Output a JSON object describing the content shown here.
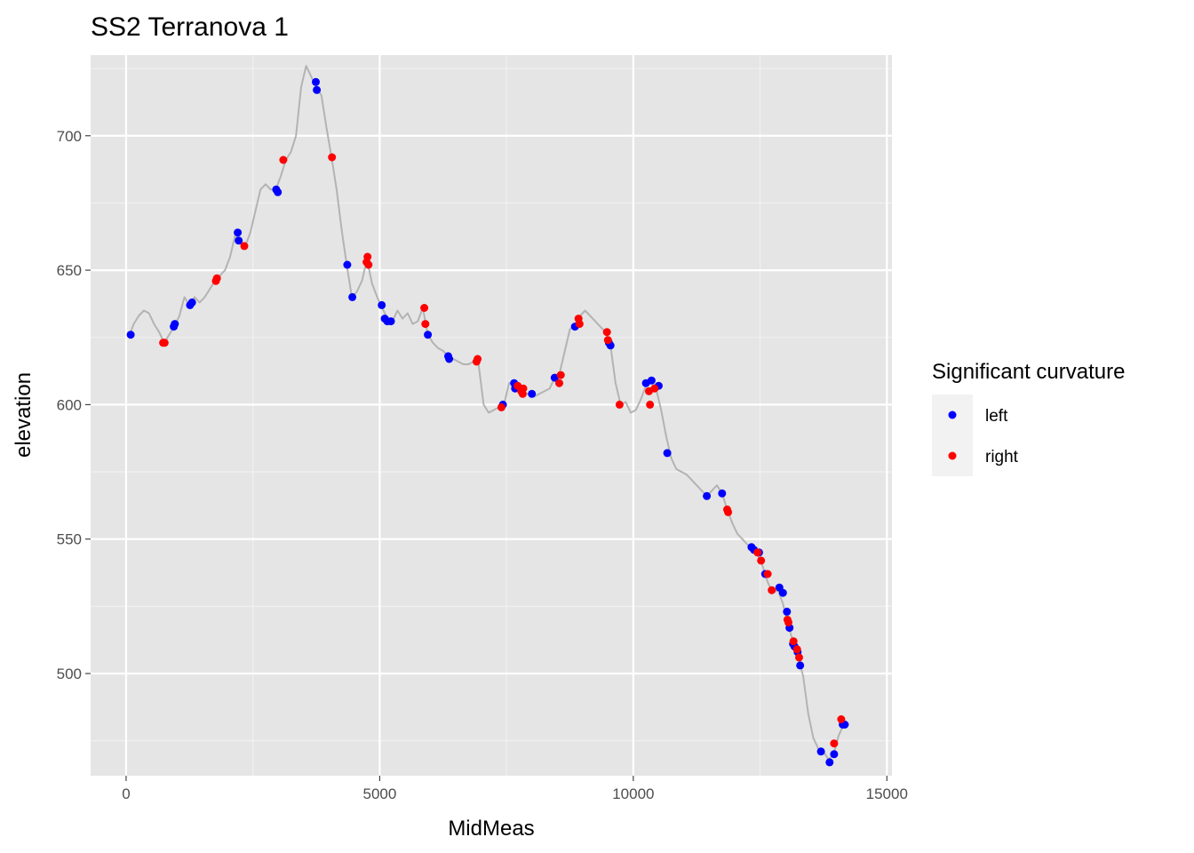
{
  "chart_data": {
    "type": "scatter",
    "title": "SS2 Terranova 1",
    "xlabel": "MidMeas",
    "ylabel": "elevation",
    "xlim": [
      -700,
      15100
    ],
    "ylim": [
      462,
      730
    ],
    "x_ticks": [
      0,
      5000,
      10000,
      15000
    ],
    "y_ticks": [
      500,
      550,
      600,
      650,
      700
    ],
    "grid": true,
    "background": "#e5e5e5",
    "legend": {
      "title": "Significant curvature",
      "placement": "right",
      "entries": [
        {
          "label": "left",
          "color": "#0000ff"
        },
        {
          "label": "right",
          "color": "#ff0000"
        }
      ]
    },
    "profile_line": {
      "color": "#b3b3b3",
      "points": [
        [
          50,
          625
        ],
        [
          150,
          630
        ],
        [
          250,
          633
        ],
        [
          350,
          635
        ],
        [
          450,
          634
        ],
        [
          550,
          630
        ],
        [
          650,
          627
        ],
        [
          750,
          623
        ],
        [
          850,
          626
        ],
        [
          950,
          629
        ],
        [
          1050,
          633
        ],
        [
          1150,
          640
        ],
        [
          1250,
          637
        ],
        [
          1350,
          640
        ],
        [
          1450,
          638
        ],
        [
          1550,
          640
        ],
        [
          1650,
          643
        ],
        [
          1750,
          646
        ],
        [
          1850,
          648
        ],
        [
          1950,
          650
        ],
        [
          2050,
          655
        ],
        [
          2150,
          663
        ],
        [
          2250,
          660
        ],
        [
          2350,
          659
        ],
        [
          2450,
          664
        ],
        [
          2550,
          672
        ],
        [
          2650,
          680
        ],
        [
          2750,
          682
        ],
        [
          2850,
          680
        ],
        [
          2950,
          680
        ],
        [
          3050,
          685
        ],
        [
          3150,
          691
        ],
        [
          3250,
          694
        ],
        [
          3350,
          700
        ],
        [
          3450,
          718
        ],
        [
          3550,
          726
        ],
        [
          3650,
          722
        ],
        [
          3750,
          718
        ],
        [
          3850,
          715
        ],
        [
          3950,
          703
        ],
        [
          4050,
          692
        ],
        [
          4150,
          680
        ],
        [
          4250,
          665
        ],
        [
          4350,
          652
        ],
        [
          4450,
          640
        ],
        [
          4550,
          642
        ],
        [
          4650,
          646
        ],
        [
          4750,
          654
        ],
        [
          4850,
          645
        ],
        [
          4950,
          640
        ],
        [
          5050,
          636
        ],
        [
          5150,
          632
        ],
        [
          5250,
          631
        ],
        [
          5350,
          635
        ],
        [
          5450,
          632
        ],
        [
          5550,
          634
        ],
        [
          5650,
          630
        ],
        [
          5750,
          631
        ],
        [
          5850,
          636
        ],
        [
          5950,
          626
        ],
        [
          6050,
          623
        ],
        [
          6150,
          621
        ],
        [
          6250,
          620
        ],
        [
          6350,
          618
        ],
        [
          6450,
          617
        ],
        [
          6550,
          616
        ],
        [
          6650,
          615
        ],
        [
          6750,
          615
        ],
        [
          6850,
          616
        ],
        [
          6950,
          615
        ],
        [
          7050,
          600
        ],
        [
          7150,
          597
        ],
        [
          7250,
          598
        ],
        [
          7350,
          599
        ],
        [
          7450,
          600
        ],
        [
          7550,
          608
        ],
        [
          7650,
          608
        ],
        [
          7750,
          605
        ],
        [
          7850,
          604
        ],
        [
          7950,
          604
        ],
        [
          8050,
          603
        ],
        [
          8150,
          604
        ],
        [
          8250,
          605
        ],
        [
          8350,
          606
        ],
        [
          8450,
          610
        ],
        [
          8550,
          612
        ],
        [
          8650,
          620
        ],
        [
          8750,
          628
        ],
        [
          8850,
          630
        ],
        [
          8950,
          633
        ],
        [
          9050,
          635
        ],
        [
          9150,
          633
        ],
        [
          9250,
          631
        ],
        [
          9350,
          629
        ],
        [
          9450,
          627
        ],
        [
          9550,
          622
        ],
        [
          9650,
          608
        ],
        [
          9750,
          600
        ],
        [
          9850,
          601
        ],
        [
          9950,
          597
        ],
        [
          10050,
          598
        ],
        [
          10150,
          602
        ],
        [
          10250,
          607
        ],
        [
          10350,
          609
        ],
        [
          10450,
          606
        ],
        [
          10550,
          598
        ],
        [
          10650,
          588
        ],
        [
          10750,
          580
        ],
        [
          10850,
          576
        ],
        [
          10950,
          575
        ],
        [
          11050,
          574
        ],
        [
          11150,
          572
        ],
        [
          11250,
          570
        ],
        [
          11350,
          568
        ],
        [
          11450,
          566
        ],
        [
          11550,
          568
        ],
        [
          11650,
          570
        ],
        [
          11750,
          567
        ],
        [
          11850,
          561
        ],
        [
          11950,
          556
        ],
        [
          12050,
          552
        ],
        [
          12150,
          550
        ],
        [
          12250,
          548
        ],
        [
          12350,
          546
        ],
        [
          12450,
          544
        ],
        [
          12550,
          540
        ],
        [
          12650,
          534
        ],
        [
          12750,
          530
        ],
        [
          12850,
          531
        ],
        [
          12950,
          526
        ],
        [
          13050,
          518
        ],
        [
          13150,
          512
        ],
        [
          13250,
          506
        ],
        [
          13350,
          499
        ],
        [
          13450,
          485
        ],
        [
          13550,
          476
        ],
        [
          13650,
          472
        ],
        [
          13750,
          471
        ],
        [
          13850,
          468
        ],
        [
          13950,
          470
        ],
        [
          14050,
          477
        ],
        [
          14150,
          481
        ],
        [
          14250,
          481
        ]
      ]
    },
    "series": [
      {
        "name": "left",
        "color": "#0000ff",
        "points": [
          [
            90,
            626
          ],
          [
            940,
            629
          ],
          [
            960,
            630
          ],
          [
            1260,
            637
          ],
          [
            1300,
            638
          ],
          [
            2200,
            664
          ],
          [
            2220,
            661
          ],
          [
            2960,
            680
          ],
          [
            2990,
            679
          ],
          [
            3740,
            720
          ],
          [
            3760,
            717
          ],
          [
            4360,
            652
          ],
          [
            4460,
            640
          ],
          [
            5040,
            637
          ],
          [
            5100,
            632
          ],
          [
            5150,
            631
          ],
          [
            5220,
            631
          ],
          [
            5950,
            626
          ],
          [
            6350,
            618
          ],
          [
            6370,
            617
          ],
          [
            7430,
            600
          ],
          [
            7650,
            608
          ],
          [
            7670,
            606
          ],
          [
            8000,
            604
          ],
          [
            8450,
            610
          ],
          [
            8850,
            629
          ],
          [
            9520,
            623
          ],
          [
            9550,
            622
          ],
          [
            10250,
            608
          ],
          [
            10360,
            609
          ],
          [
            10500,
            607
          ],
          [
            10670,
            582
          ],
          [
            11450,
            566
          ],
          [
            11750,
            567
          ],
          [
            12330,
            547
          ],
          [
            12380,
            546
          ],
          [
            12480,
            545
          ],
          [
            12600,
            537
          ],
          [
            12880,
            532
          ],
          [
            12950,
            530
          ],
          [
            13030,
            523
          ],
          [
            13080,
            517
          ],
          [
            13150,
            511
          ],
          [
            13180,
            510
          ],
          [
            13240,
            508
          ],
          [
            13290,
            503
          ],
          [
            13700,
            471
          ],
          [
            13870,
            467
          ],
          [
            13960,
            470
          ],
          [
            14130,
            481
          ],
          [
            14170,
            481
          ]
        ]
      },
      {
        "name": "right",
        "color": "#ff0000",
        "points": [
          [
            730,
            623
          ],
          [
            760,
            623
          ],
          [
            1770,
            646
          ],
          [
            1790,
            647
          ],
          [
            2330,
            659
          ],
          [
            3100,
            691
          ],
          [
            4060,
            692
          ],
          [
            4760,
            655
          ],
          [
            4780,
            652
          ],
          [
            4740,
            653
          ],
          [
            5880,
            636
          ],
          [
            5900,
            630
          ],
          [
            6910,
            616
          ],
          [
            6930,
            617
          ],
          [
            7400,
            599
          ],
          [
            7720,
            607
          ],
          [
            7790,
            605
          ],
          [
            7830,
            606
          ],
          [
            7820,
            604
          ],
          [
            8540,
            608
          ],
          [
            8570,
            611
          ],
          [
            8920,
            632
          ],
          [
            8940,
            630
          ],
          [
            9480,
            627
          ],
          [
            9500,
            624
          ],
          [
            9730,
            600
          ],
          [
            10310,
            605
          ],
          [
            10330,
            600
          ],
          [
            10420,
            606
          ],
          [
            11850,
            561
          ],
          [
            11870,
            560
          ],
          [
            12450,
            545
          ],
          [
            12520,
            542
          ],
          [
            12650,
            537
          ],
          [
            12730,
            531
          ],
          [
            13040,
            520
          ],
          [
            13060,
            519
          ],
          [
            13160,
            512
          ],
          [
            13230,
            509
          ],
          [
            13270,
            506
          ],
          [
            13960,
            474
          ],
          [
            14100,
            483
          ]
        ]
      }
    ]
  }
}
